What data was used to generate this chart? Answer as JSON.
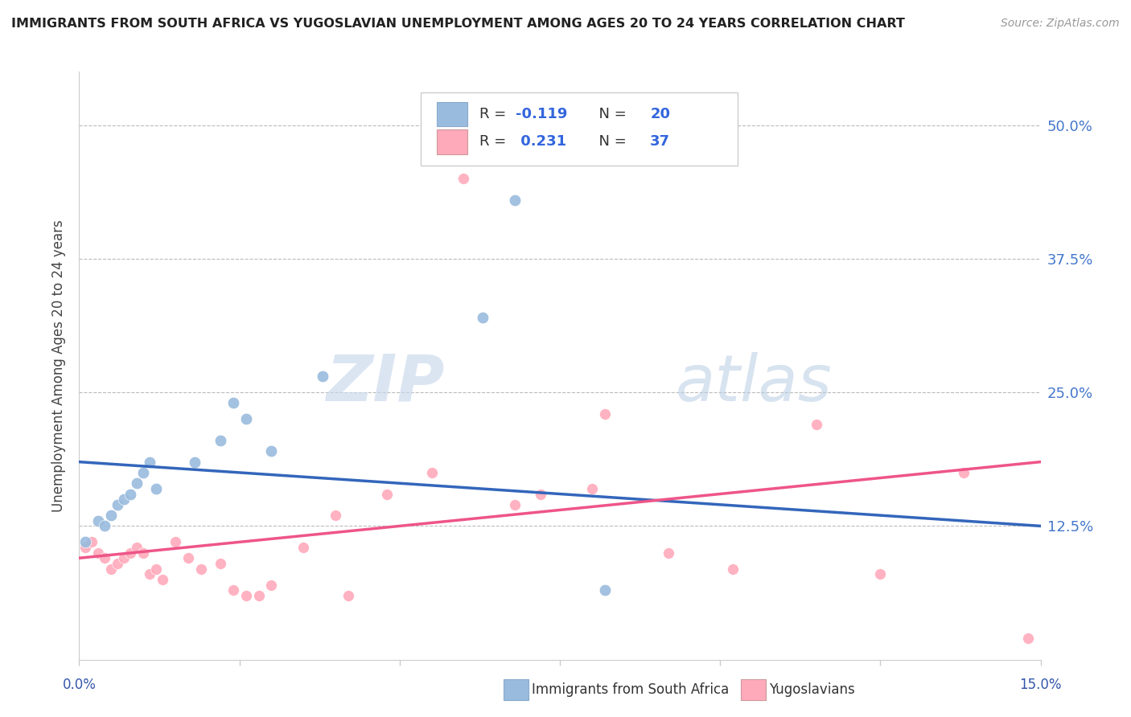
{
  "title": "IMMIGRANTS FROM SOUTH AFRICA VS YUGOSLAVIAN UNEMPLOYMENT AMONG AGES 20 TO 24 YEARS CORRELATION CHART",
  "source": "Source: ZipAtlas.com",
  "ylabel": "Unemployment Among Ages 20 to 24 years",
  "ytick_labels": [
    "50.0%",
    "37.5%",
    "25.0%",
    "12.5%"
  ],
  "ytick_values": [
    0.5,
    0.375,
    0.25,
    0.125
  ],
  "xlim": [
    0.0,
    0.15
  ],
  "ylim": [
    0.0,
    0.55
  ],
  "blue_color": "#99BBDD",
  "pink_color": "#FFAABB",
  "blue_line_color": "#3366BB",
  "pink_line_color": "#EE5588",
  "watermark_zip": "ZIP",
  "watermark_atlas": "atlas",
  "blue_scatter_x": [
    0.001,
    0.003,
    0.004,
    0.005,
    0.006,
    0.007,
    0.008,
    0.009,
    0.01,
    0.011,
    0.012,
    0.018,
    0.022,
    0.024,
    0.026,
    0.03,
    0.038,
    0.063,
    0.068,
    0.082
  ],
  "blue_scatter_y": [
    0.11,
    0.13,
    0.125,
    0.135,
    0.145,
    0.15,
    0.155,
    0.165,
    0.175,
    0.185,
    0.16,
    0.185,
    0.205,
    0.24,
    0.225,
    0.195,
    0.265,
    0.32,
    0.43,
    0.065
  ],
  "pink_scatter_x": [
    0.001,
    0.002,
    0.003,
    0.004,
    0.005,
    0.006,
    0.007,
    0.008,
    0.009,
    0.01,
    0.011,
    0.012,
    0.013,
    0.015,
    0.017,
    0.019,
    0.022,
    0.024,
    0.026,
    0.028,
    0.03,
    0.035,
    0.04,
    0.042,
    0.048,
    0.055,
    0.06,
    0.068,
    0.072,
    0.08,
    0.082,
    0.092,
    0.102,
    0.115,
    0.125,
    0.138,
    0.148
  ],
  "pink_scatter_y": [
    0.105,
    0.11,
    0.1,
    0.095,
    0.085,
    0.09,
    0.095,
    0.1,
    0.105,
    0.1,
    0.08,
    0.085,
    0.075,
    0.11,
    0.095,
    0.085,
    0.09,
    0.065,
    0.06,
    0.06,
    0.07,
    0.105,
    0.135,
    0.06,
    0.155,
    0.175,
    0.45,
    0.145,
    0.155,
    0.16,
    0.23,
    0.1,
    0.085,
    0.22,
    0.08,
    0.175,
    0.02
  ],
  "blue_line_x0": 0.0,
  "blue_line_x1": 0.15,
  "blue_line_y0": 0.185,
  "blue_line_y1": 0.125,
  "pink_line_x0": 0.0,
  "pink_line_x1": 0.15,
  "pink_line_y0": 0.095,
  "pink_line_y1": 0.185
}
